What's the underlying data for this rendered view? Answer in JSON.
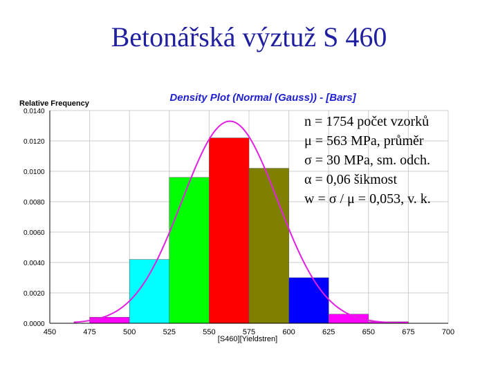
{
  "slide": {
    "title": "Betonářská výztuž S 460"
  },
  "stats": [
    "n = 1754 počet vzorků",
    "μ = 563 MPa, průměr",
    "σ =   30 MPa, sm. odch.",
    "α =  0,06 šikmost",
    "w = σ / μ =  0,053, v. k."
  ],
  "chart_data": {
    "type": "bar",
    "title": "Density Plot (Normal (Gauss)) - [Bars]",
    "xlabel": "[S460][Yieldstren]",
    "ylabel": "Relative Frequency",
    "xlim": [
      450,
      700
    ],
    "ylim": [
      0,
      0.014
    ],
    "x_ticks": [
      "450",
      "475",
      "500",
      "525",
      "550",
      "575",
      "600",
      "625",
      "650",
      "675",
      "700"
    ],
    "y_ticks": [
      "0.0000",
      "0.0020",
      "0.0040",
      "0.0060",
      "0.0080",
      "0.0100",
      "0.0120",
      "0.0140"
    ],
    "bins": [
      {
        "start": 475,
        "end": 500,
        "value": 0.0004,
        "color": "#ff00ff"
      },
      {
        "start": 500,
        "end": 525,
        "value": 0.0042,
        "color": "#00ffff"
      },
      {
        "start": 525,
        "end": 550,
        "value": 0.0096,
        "color": "#00ff00"
      },
      {
        "start": 550,
        "end": 575,
        "value": 0.0122,
        "color": "#ff0000"
      },
      {
        "start": 575,
        "end": 600,
        "value": 0.0102,
        "color": "#808000"
      },
      {
        "start": 600,
        "end": 625,
        "value": 0.003,
        "color": "#0000ff"
      },
      {
        "start": 625,
        "end": 650,
        "value": 0.0006,
        "color": "#ff00ff"
      },
      {
        "start": 650,
        "end": 675,
        "value": 0.0001,
        "color": "#ff00ff"
      }
    ],
    "curve": {
      "type": "normal",
      "mean": 563,
      "sd": 30,
      "color": "#e020e0"
    },
    "grid": true
  }
}
